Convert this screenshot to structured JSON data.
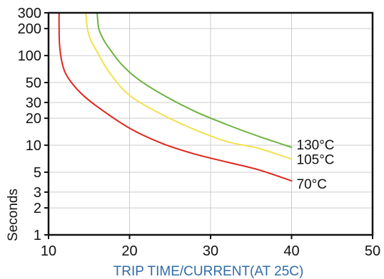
{
  "chart_data": {
    "type": "line",
    "title": "",
    "xlabel": "TRIP TIME/CURRENT(AT 25C)",
    "ylabel": "Seconds",
    "xlim": [
      10,
      50
    ],
    "ylim": [
      1,
      300
    ],
    "y_scale": "log",
    "x_ticks": [
      10,
      20,
      30,
      40,
      50
    ],
    "y_ticks": [
      1,
      2,
      3,
      5,
      10,
      20,
      30,
      50,
      100,
      200,
      300
    ],
    "grid": true,
    "legend": "none",
    "series": [
      {
        "name": "130°C",
        "color": "#6db33f",
        "points": [
          [
            16.0,
            300
          ],
          [
            16.2,
            200
          ],
          [
            16.8,
            150
          ],
          [
            17.5,
            120
          ],
          [
            19.0,
            80
          ],
          [
            21.0,
            55
          ],
          [
            24.0,
            37
          ],
          [
            28.0,
            24
          ],
          [
            32.0,
            17
          ],
          [
            36.0,
            12.5
          ],
          [
            40.0,
            9.5
          ]
        ]
      },
      {
        "name": "105°C",
        "color": "#f2e14c",
        "points": [
          [
            14.6,
            300
          ],
          [
            14.8,
            200
          ],
          [
            15.2,
            150
          ],
          [
            16.0,
            110
          ],
          [
            17.5,
            65
          ],
          [
            20.0,
            36
          ],
          [
            24.0,
            22
          ],
          [
            28.0,
            15
          ],
          [
            32.0,
            11
          ],
          [
            36.0,
            9.2
          ],
          [
            40.0,
            7.0
          ]
        ]
      },
      {
        "name": "70°C",
        "color": "#e0261f",
        "points": [
          [
            11.3,
            300
          ],
          [
            11.3,
            200
          ],
          [
            11.4,
            120
          ],
          [
            11.8,
            75
          ],
          [
            12.5,
            55
          ],
          [
            14.0,
            38
          ],
          [
            16.0,
            27
          ],
          [
            20.0,
            15.5
          ],
          [
            24.0,
            10.5
          ],
          [
            28.0,
            8.0
          ],
          [
            32.0,
            6.5
          ],
          [
            36.0,
            5.3
          ],
          [
            40.0,
            4.0
          ]
        ]
      }
    ]
  },
  "colors": {
    "axis": "#111111",
    "grid": "#cccccc",
    "xlabel": "#2f6ca8"
  }
}
